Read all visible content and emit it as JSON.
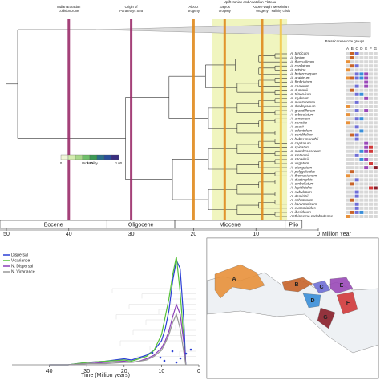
{
  "phylogeny": {
    "outgroup": "Brassicaceae core groups",
    "events": [
      {
        "label": [
          "Indian Eurasian",
          "collision zone"
        ],
        "age": 40,
        "color": "#9b2d6b"
      },
      {
        "label": [
          "Origin of",
          "Paratethys Sea"
        ],
        "age": 30,
        "color": "#9b2d6b"
      },
      {
        "label": [
          "Alborz",
          "orogeny"
        ],
        "age": 20,
        "color": "#e08a1e"
      },
      {
        "label": [
          "Zagros",
          "orogeny"
        ],
        "age": 15,
        "color": "#e08a1e"
      },
      {
        "label": [
          "Kopeh-Dagh",
          "orogeny"
        ],
        "age": 9,
        "color": "#e08a1e"
      },
      {
        "label": [
          "Messinian",
          "salinity crisis"
        ],
        "age": 6,
        "color": "#f2c94c"
      }
    ],
    "uplift": {
      "label": "Uplift Iranian and Anatolian Plateau",
      "from": 17,
      "to": 5
    },
    "epochs": [
      {
        "name": "Eocene",
        "from": 56,
        "to": 33.9
      },
      {
        "name": "Oligocene",
        "from": 33.9,
        "to": 23
      },
      {
        "name": "Miocene",
        "from": 23,
        "to": 5.3
      },
      {
        "name": "Plio",
        "from": 5.3,
        "to": 2.6
      }
    ],
    "xlim": [
      50,
      0
    ],
    "xticks": [
      50,
      40,
      30,
      20,
      10,
      0
    ],
    "xlabel": "Million Year",
    "probability_legend": {
      "title": "Probability",
      "ticks": [
        "0",
        "0.50",
        "1.00"
      ]
    },
    "area_letters": [
      "A",
      "B",
      "C",
      "D",
      "E",
      "F",
      "G"
    ],
    "area_colors": [
      "#e8913a",
      "#c8642a",
      "#6f6fd6",
      "#3a8fd9",
      "#9a49b8",
      "#d23a3a",
      "#8a1f2a"
    ],
    "species": [
      {
        "name": "A. turcicum",
        "areas": "BC"
      },
      {
        "name": "A. lycium",
        "areas": "B"
      },
      {
        "name": "A. thessalicum",
        "areas": "A"
      },
      {
        "name": "A. cordatum",
        "areas": "BC"
      },
      {
        "name": "A. retsina",
        "areas": "A"
      },
      {
        "name": "A. heterocarpum",
        "areas": "CDE"
      },
      {
        "name": "A. arabicum",
        "areas": "ABCDE"
      },
      {
        "name": "A. fimbriatum",
        "areas": "E"
      },
      {
        "name": "A. carneum",
        "areas": "CE"
      },
      {
        "name": "A. dumanii",
        "areas": "B"
      },
      {
        "name": "A. trinervium",
        "areas": "CD"
      },
      {
        "name": "A. stylosum",
        "areas": "E"
      },
      {
        "name": "A. munzurense",
        "areas": "C"
      },
      {
        "name": "A. rhodopaeum",
        "areas": "A"
      },
      {
        "name": "A. grandiflorum",
        "areas": "CE"
      },
      {
        "name": "A. orbiculatum",
        "areas": "A"
      },
      {
        "name": "A. armenum",
        "areas": "CD"
      },
      {
        "name": "A. saxatile",
        "areas": "A"
      },
      {
        "name": "A. acarii",
        "areas": "C"
      },
      {
        "name": "A. edentulum",
        "areas": "D"
      },
      {
        "name": "A. coridifolium",
        "areas": "BC"
      },
      {
        "name": "A. huber-morathii",
        "areas": "C"
      },
      {
        "name": "A. capitatum",
        "areas": "E"
      },
      {
        "name": "A. spicatum",
        "areas": "EF"
      },
      {
        "name": "A. membranaceum",
        "areas": "DEF"
      },
      {
        "name": "A. sintenisii",
        "areas": "C"
      },
      {
        "name": "A. szowitsii",
        "areas": "DE"
      },
      {
        "name": "A. virgatum",
        "areas": "F"
      },
      {
        "name": "A. elongatum",
        "areas": "EG"
      },
      {
        "name": "A. polygaloides",
        "areas": "B"
      },
      {
        "name": "A. thomasianum",
        "areas": "A"
      },
      {
        "name": "A. diastrophis",
        "areas": "C"
      },
      {
        "name": "A. umbellatum",
        "areas": "B"
      },
      {
        "name": "A. lepidioides",
        "areas": "FG"
      },
      {
        "name": "A. subulatum",
        "areas": "C"
      },
      {
        "name": "A. demirizii",
        "areas": "C"
      },
      {
        "name": "A. schistosum",
        "areas": "B"
      },
      {
        "name": "A. karamanicum",
        "areas": "C"
      },
      {
        "name": "A. eunomioides",
        "areas": "C"
      },
      {
        "name": "A. iberideum",
        "areas": "BCD"
      },
      {
        "name": "Aethionema carlsbadense",
        "areas": "A"
      }
    ]
  },
  "rate_chart": {
    "type": "line",
    "xlabel": "Time (Million years)",
    "xlim": [
      50,
      0
    ],
    "xticks": [
      40,
      30,
      20,
      10,
      0
    ],
    "ylim": [
      0,
      1
    ],
    "x": [
      40,
      35,
      30,
      25,
      20,
      18,
      16,
      14,
      12,
      10,
      9,
      8,
      7,
      6,
      5,
      4,
      3.5
    ],
    "series": [
      {
        "name": "Dispersal",
        "color": "#2b3fd6",
        "values": [
          0,
          0,
          0.02,
          0.03,
          0.05,
          0.04,
          0.06,
          0.08,
          0.12,
          0.2,
          0.3,
          0.45,
          0.7,
          0.87,
          0.8,
          0.35,
          0
        ]
      },
      {
        "name": "Vicariance",
        "color": "#58c23a",
        "values": [
          0,
          0,
          0.02,
          0.03,
          0.04,
          0.03,
          0.05,
          0.07,
          0.12,
          0.25,
          0.4,
          0.55,
          0.75,
          0.9,
          0.6,
          0.2,
          0
        ]
      },
      {
        "name": "N. Dispersal",
        "color": "#8b3fb8",
        "values": [
          0,
          0,
          0.01,
          0.02,
          0.03,
          0.02,
          0.03,
          0.05,
          0.08,
          0.14,
          0.2,
          0.28,
          0.4,
          0.5,
          0.42,
          0.18,
          0
        ]
      },
      {
        "name": "N. Vicariance",
        "color": "#999999",
        "values": [
          0,
          0,
          0.01,
          0.01,
          0.02,
          0.02,
          0.03,
          0.04,
          0.07,
          0.12,
          0.18,
          0.25,
          0.35,
          0.42,
          0.3,
          0.1,
          0
        ]
      }
    ]
  },
  "map": {
    "regions": [
      {
        "label": "A",
        "color": "#e8913a"
      },
      {
        "label": "B",
        "color": "#c8642a"
      },
      {
        "label": "C",
        "color": "#6f6fd6"
      },
      {
        "label": "D",
        "color": "#3a8fd9"
      },
      {
        "label": "E",
        "color": "#9a49b8"
      },
      {
        "label": "F",
        "color": "#d23a3a"
      },
      {
        "label": "G",
        "color": "#8a1f2a"
      }
    ]
  }
}
